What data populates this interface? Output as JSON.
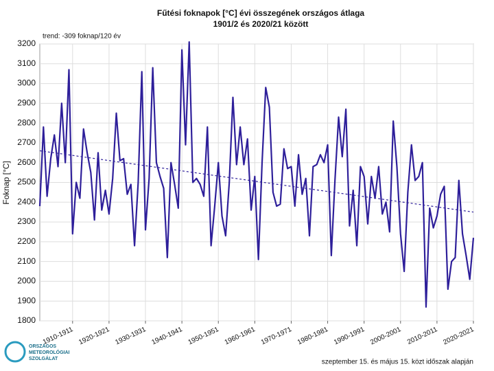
{
  "chart_data": {
    "type": "line",
    "title": [
      "Fűtési foknapok [°C] évi összegének országos átlaga",
      "1901/2 és 2020/21 között"
    ],
    "y_label": "Foknap [°C]",
    "annotation": "trend: -309 foknap/120 év",
    "footnote": "szeptember 15. és május 15. közt időszak alapján",
    "logo": [
      "ORSZÁGOS",
      "METEOROLÓGIAI",
      "SZOLGÁLAT"
    ],
    "grid": true,
    "xlim": [
      1901,
      2020
    ],
    "ylim": [
      1800,
      3200
    ],
    "yticks": [
      1800,
      1900,
      2000,
      2100,
      2200,
      2300,
      2400,
      2500,
      2600,
      2700,
      2800,
      2900,
      3000,
      3100,
      3200
    ],
    "xticks": [
      {
        "value": 1910,
        "label": "1910-1911"
      },
      {
        "value": 1920,
        "label": "1920-1921"
      },
      {
        "value": 1930,
        "label": "1930-1931"
      },
      {
        "value": 1940,
        "label": "1940-1941"
      },
      {
        "value": 1950,
        "label": "1950-1951"
      },
      {
        "value": 1960,
        "label": "1960-1961"
      },
      {
        "value": 1970,
        "label": "1970-1971"
      },
      {
        "value": 1980,
        "label": "1980-1981"
      },
      {
        "value": 1990,
        "label": "1990-1991"
      },
      {
        "value": 2000,
        "label": "2000-2001"
      },
      {
        "value": 2010,
        "label": "2010-2011"
      },
      {
        "value": 2020,
        "label": "2020-2021"
      }
    ],
    "x": [
      1901,
      1902,
      1903,
      1904,
      1905,
      1906,
      1907,
      1908,
      1909,
      1910,
      1911,
      1912,
      1913,
      1914,
      1915,
      1916,
      1917,
      1918,
      1919,
      1920,
      1921,
      1922,
      1923,
      1924,
      1925,
      1926,
      1927,
      1928,
      1929,
      1930,
      1931,
      1932,
      1933,
      1934,
      1935,
      1936,
      1937,
      1938,
      1939,
      1940,
      1941,
      1942,
      1943,
      1944,
      1945,
      1946,
      1947,
      1948,
      1949,
      1950,
      1951,
      1952,
      1953,
      1954,
      1955,
      1956,
      1957,
      1958,
      1959,
      1960,
      1961,
      1962,
      1963,
      1964,
      1965,
      1966,
      1967,
      1968,
      1969,
      1970,
      1971,
      1972,
      1973,
      1974,
      1975,
      1976,
      1977,
      1978,
      1979,
      1980,
      1981,
      1982,
      1983,
      1984,
      1985,
      1986,
      1987,
      1988,
      1989,
      1990,
      1991,
      1992,
      1993,
      1994,
      1995,
      1996,
      1997,
      1998,
      1999,
      2000,
      2001,
      2002,
      2003,
      2004,
      2005,
      2006,
      2007,
      2008,
      2009,
      2010,
      2011,
      2012,
      2013,
      2014,
      2015,
      2016,
      2017,
      2018,
      2019,
      2020
    ],
    "series": [
      {
        "color": "#2e1f9a",
        "values": [
          2380,
          2780,
          2430,
          2620,
          2740,
          2580,
          2900,
          2600,
          3070,
          2240,
          2500,
          2420,
          2770,
          2650,
          2550,
          2310,
          2650,
          2360,
          2460,
          2340,
          2520,
          2850,
          2610,
          2620,
          2440,
          2490,
          2180,
          2500,
          3060,
          2260,
          2520,
          3080,
          2600,
          2530,
          2470,
          2120,
          2600,
          2490,
          2370,
          3170,
          2690,
          3210,
          2500,
          2520,
          2490,
          2430,
          2780,
          2180,
          2380,
          2600,
          2330,
          2230,
          2500,
          2930,
          2590,
          2780,
          2590,
          2720,
          2360,
          2530,
          2110,
          2600,
          2980,
          2880,
          2450,
          2380,
          2390,
          2670,
          2570,
          2580,
          2380,
          2640,
          2440,
          2520,
          2230,
          2580,
          2590,
          2640,
          2600,
          2690,
          2130,
          2510,
          2830,
          2630,
          2870,
          2280,
          2460,
          2180,
          2580,
          2530,
          2290,
          2530,
          2420,
          2580,
          2340,
          2400,
          2250,
          2810,
          2580,
          2240,
          2050,
          2450,
          2690,
          2510,
          2530,
          2600,
          1870,
          2370,
          2270,
          2330,
          2440,
          2480,
          1960,
          2100,
          2120,
          2510,
          2240,
          2130,
          2010,
          2220
        ]
      }
    ],
    "trend": {
      "color": "#2e1f9a",
      "x": [
        1901,
        2020
      ],
      "values": [
        2660,
        2350
      ]
    }
  }
}
